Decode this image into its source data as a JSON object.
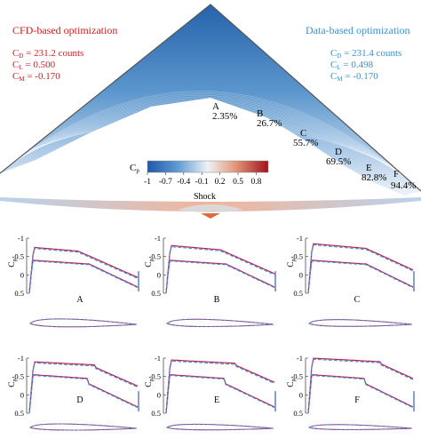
{
  "colors": {
    "cfd": "#cc1f1f",
    "data": "#3a8fd6",
    "cfd_line": "#b8234f",
    "data_line": "#4a90d9",
    "airfoil": "#4a68b8"
  },
  "left_panel": {
    "title": "CFD-based optimization",
    "cd_sym": "C",
    "cd_sub": "D",
    "cd_val": " = 231.2 counts",
    "cl_sym": "C",
    "cl_sub": "L",
    "cl_val": " = 0.500",
    "cm_sym": "C",
    "cm_sub": "M",
    "cm_val": " = -0.170"
  },
  "right_panel": {
    "title": "Data-based optimization",
    "cd_sym": "C",
    "cd_sub": "D",
    "cd_val": " = 231.4 counts",
    "cl_sym": "C",
    "cl_sub": "L",
    "cl_val": " = 0.498",
    "cm_sym": "C",
    "cm_sub": "M",
    "cm_val": " = -0.170"
  },
  "sections": [
    {
      "letter": "A",
      "pct": "2.35%"
    },
    {
      "letter": "B",
      "pct": "26.7%"
    },
    {
      "letter": "C",
      "pct": "55.7%"
    },
    {
      "letter": "D",
      "pct": "69.5%"
    },
    {
      "letter": "E",
      "pct": "82.8%"
    },
    {
      "letter": "F",
      "pct": "94.4%"
    }
  ],
  "colorbar": {
    "label_sym": "C",
    "label_sub": "p",
    "ticks": [
      "-1",
      "-0.7",
      "-0.4",
      "-0.1",
      "0.2",
      "0.5",
      "0.8"
    ],
    "range": [
      -1,
      1
    ]
  },
  "shock_label": "Shock",
  "cp_axis": {
    "label_sym": "C",
    "label_sub": "p",
    "ticks": [
      "-1",
      "-0.5",
      "0",
      "0.5"
    ],
    "ylim": [
      -1,
      0.5
    ]
  },
  "panels": [
    {
      "letter": "A"
    },
    {
      "letter": "B"
    },
    {
      "letter": "C"
    },
    {
      "letter": "D"
    },
    {
      "letter": "E"
    },
    {
      "letter": "F"
    }
  ]
}
